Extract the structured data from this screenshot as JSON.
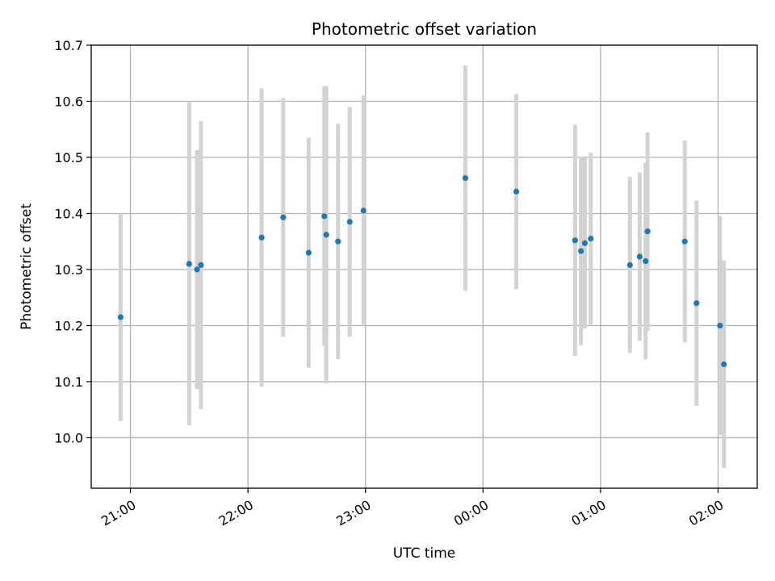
{
  "chart_data": {
    "type": "scatter",
    "title": "Photometric offset variation",
    "xlabel": "UTC time",
    "ylabel": "Photometric offset",
    "x_unit": "UTC time (HH:MM)",
    "xlim": [
      "20:40",
      "26:20"
    ],
    "ylim": [
      9.91,
      10.7
    ],
    "grid": true,
    "x_ticks": [
      "21:00",
      "22:00",
      "23:00",
      "00:00",
      "01:00",
      "02:00"
    ],
    "y_ticks": [
      "10.0",
      "10.1",
      "10.2",
      "10.3",
      "10.4",
      "10.5",
      "10.6",
      "10.7"
    ],
    "colors": {
      "point": "#1f77b4",
      "errorbar": "#d3d3d3",
      "grid": "#b0b0b0"
    },
    "points": [
      {
        "x": "20:55",
        "y": 10.215,
        "yerr": 0.185
      },
      {
        "x": "21:30",
        "y": 10.31,
        "yerr": 0.288
      },
      {
        "x": "21:34",
        "y": 10.3,
        "yerr": 0.213
      },
      {
        "x": "21:36",
        "y": 10.308,
        "yerr": 0.257
      },
      {
        "x": "22:07",
        "y": 10.357,
        "yerr": 0.266
      },
      {
        "x": "22:18",
        "y": 10.393,
        "yerr": 0.213
      },
      {
        "x": "22:31",
        "y": 10.33,
        "yerr": 0.205
      },
      {
        "x": "22:39",
        "y": 10.395,
        "yerr": 0.232
      },
      {
        "x": "22:40",
        "y": 10.362,
        "yerr": 0.265
      },
      {
        "x": "22:46",
        "y": 10.35,
        "yerr": 0.21
      },
      {
        "x": "22:52",
        "y": 10.385,
        "yerr": 0.205
      },
      {
        "x": "22:59",
        "y": 10.405,
        "yerr": 0.205
      },
      {
        "x": "23:51",
        "y": 10.463,
        "yerr": 0.201
      },
      {
        "x": "24:17",
        "y": 10.439,
        "yerr": 0.174
      },
      {
        "x": "24:47",
        "y": 10.352,
        "yerr": 0.206
      },
      {
        "x": "24:50",
        "y": 10.333,
        "yerr": 0.168
      },
      {
        "x": "24:52",
        "y": 10.347,
        "yerr": 0.152
      },
      {
        "x": "24:55",
        "y": 10.355,
        "yerr": 0.153
      },
      {
        "x": "25:15",
        "y": 10.308,
        "yerr": 0.157
      },
      {
        "x": "25:20",
        "y": 10.323,
        "yerr": 0.15
      },
      {
        "x": "25:23",
        "y": 10.315,
        "yerr": 0.175
      },
      {
        "x": "25:24",
        "y": 10.368,
        "yerr": 0.177
      },
      {
        "x": "25:43",
        "y": 10.35,
        "yerr": 0.18
      },
      {
        "x": "25:49",
        "y": 10.24,
        "yerr": 0.183
      },
      {
        "x": "26:01",
        "y": 10.2,
        "yerr": 0.195
      },
      {
        "x": "26:03",
        "y": 10.131,
        "yerr": 0.185
      }
    ]
  }
}
